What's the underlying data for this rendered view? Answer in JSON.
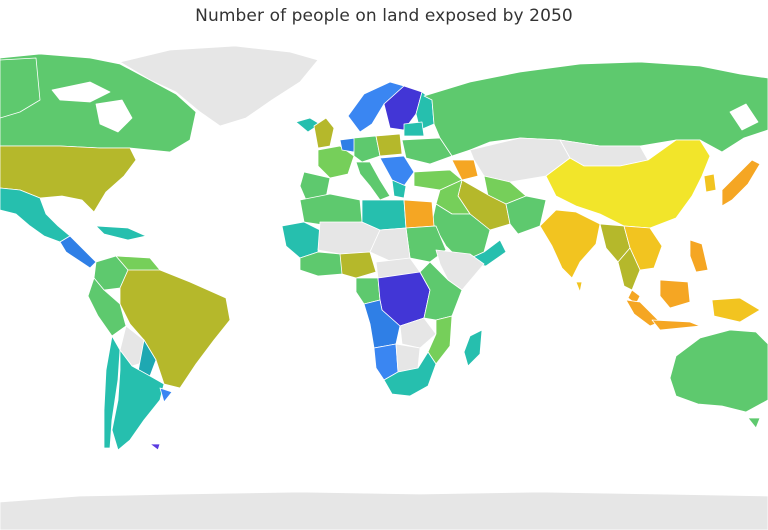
{
  "title": "Number of people on land exposed by 2050",
  "colors": {
    "no_data": "#e6e6e6",
    "ocean": "#ffffff",
    "border": "#ffffff",
    "green": "#5ec96e",
    "green_light": "#76cf5a",
    "olive": "#b5b82b",
    "teal": "#26bfae",
    "teal_dark": "#1ea8b2",
    "blue": "#3a86f2",
    "blue_med": "#2f7fe6",
    "indigo": "#4236d6",
    "violet": "#5a3be0",
    "yellow": "#f2e52a",
    "gold": "#f2c420",
    "orange": "#f5a623"
  }
}
